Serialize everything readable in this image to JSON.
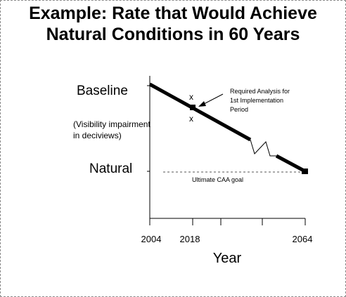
{
  "chart_data": {
    "type": "line",
    "title_line1": "Example:  Rate that Would Achieve",
    "title_line2": "Natural Conditions in 60 Years",
    "xlabel": "Year",
    "y_labels": {
      "baseline": "Baseline",
      "natural": "Natural",
      "units_line1": "(Visibility impairment",
      "units_line2": "in deciviews)"
    },
    "x_ticks": [
      "2004",
      "2018",
      "2064"
    ],
    "xlim": [
      2004,
      2064
    ],
    "series": [
      {
        "x": [
          2004,
          2018,
          2064
        ],
        "values": [
          "Baseline",
          "",
          "Natural"
        ]
      }
    ],
    "markers": [
      {
        "x": 2018,
        "symbol": "x"
      },
      {
        "x": 2018,
        "symbol": "x"
      }
    ],
    "annotations": {
      "analysis_line1": "Required Analysis for",
      "analysis_line2": "1st Implementation",
      "analysis_line3": "Period",
      "goal": "Ultimate CAA goal"
    },
    "axis_break": true,
    "grid": false
  }
}
